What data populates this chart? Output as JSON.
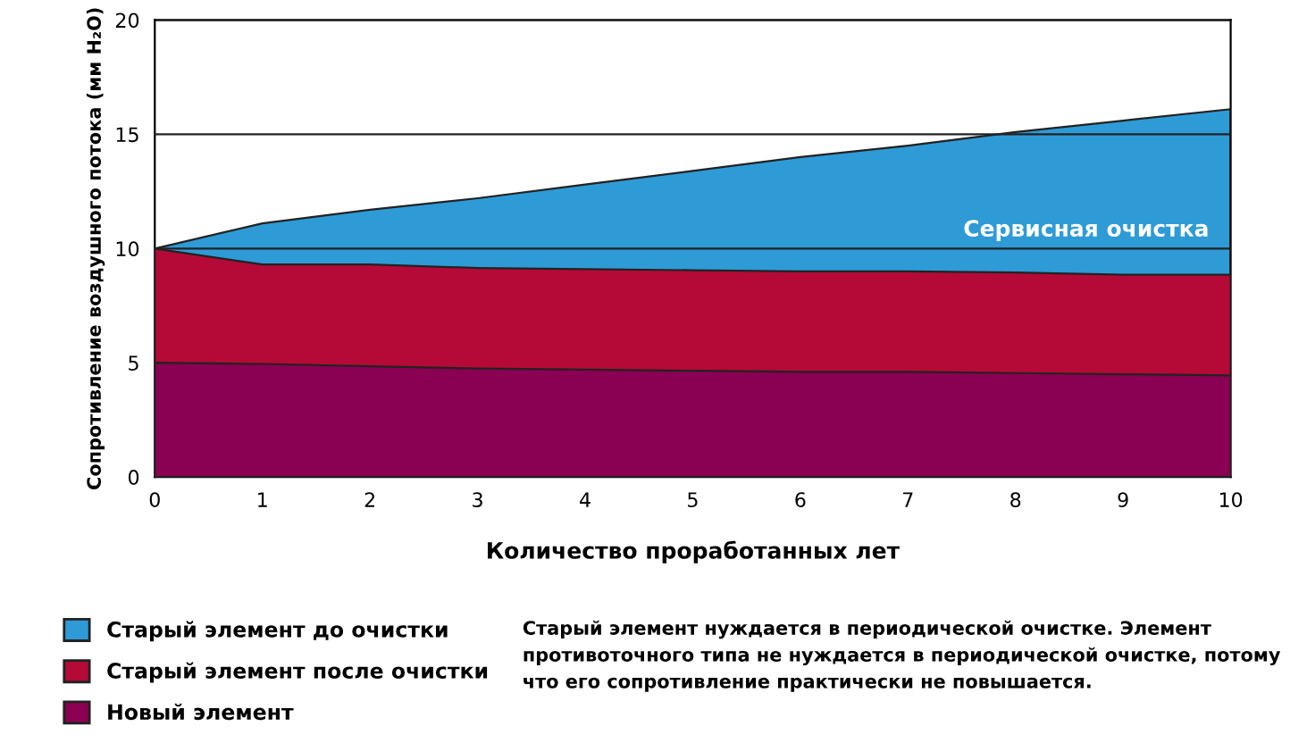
{
  "chart_data": {
    "type": "area",
    "xlabel": "Количество проработанных лет",
    "ylabel": "Сопротивление воздушного потока (мм H₂O)",
    "x": [
      0,
      1,
      2,
      3,
      4,
      5,
      6,
      7,
      8,
      9,
      10
    ],
    "series": [
      {
        "name": "Старый элемент до очистки",
        "color": "#2e9bd6",
        "values": [
          10,
          11.1,
          11.7,
          12.2,
          12.8,
          13.4,
          14,
          14.5,
          15.1,
          15.6,
          16.1
        ]
      },
      {
        "name": "Старый элемент после очистки",
        "color": "#b50a37",
        "values": [
          10,
          9.3,
          9.3,
          9.15,
          9.1,
          9.05,
          9.0,
          9.0,
          8.95,
          8.85,
          8.85
        ]
      },
      {
        "name": "Новый элемент",
        "color": "#8a0052",
        "values": [
          5,
          4.95,
          4.85,
          4.75,
          4.7,
          4.65,
          4.6,
          4.6,
          4.55,
          4.5,
          4.45
        ]
      }
    ],
    "xlim": [
      0,
      10
    ],
    "xticks": [
      0,
      1,
      2,
      3,
      4,
      5,
      6,
      7,
      8,
      9,
      10
    ],
    "ylim": [
      0,
      20
    ],
    "yticks": [
      0,
      5,
      10,
      15,
      20
    ],
    "grid": "y",
    "legend": "bottom left",
    "annotations": [
      "Сервисная очистка",
      "Старый элемент нуждается в периодической очистке. Элемент противоточного типа не нуждается в периодической очистке, потому что его сопротивление практически не повышается."
    ]
  }
}
